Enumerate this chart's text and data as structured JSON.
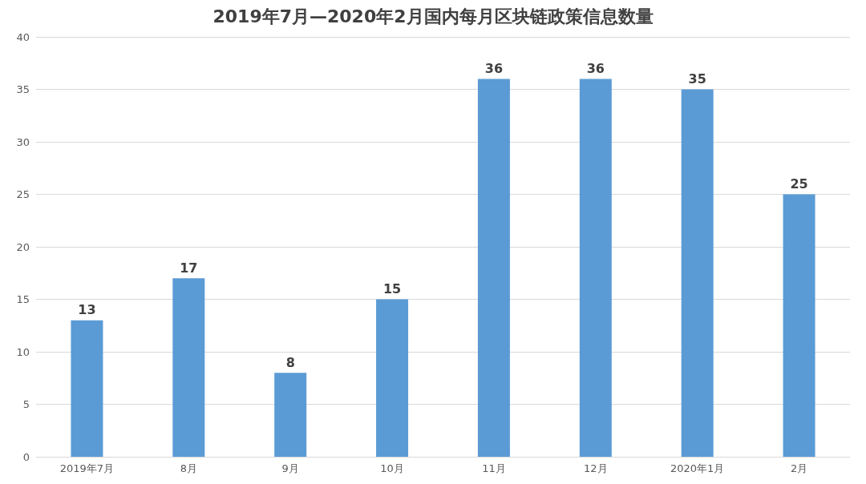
{
  "chart_data": {
    "type": "bar",
    "title": "2019年7月—2020年2月国内每月区块链政策信息数量",
    "categories": [
      "2019年7月",
      "8月",
      "9月",
      "10月",
      "11月",
      "12月",
      "2020年1月",
      "2月"
    ],
    "values": [
      13,
      17,
      8,
      15,
      36,
      36,
      35,
      25
    ],
    "color": "#5b9bd5",
    "ylim": [
      0,
      40
    ],
    "yticks": [
      0,
      5,
      10,
      15,
      20,
      25,
      30,
      35,
      40
    ],
    "grid": "y",
    "data_labels": true
  }
}
